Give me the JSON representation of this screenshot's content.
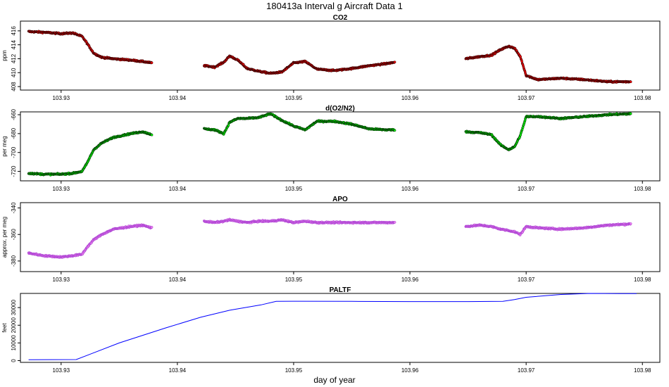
{
  "figure": {
    "title": "180413a   Interval g Aircraft Data 1",
    "xlabel": "day of year"
  },
  "chart_data": [
    {
      "type": "scatter",
      "title": "CO2",
      "ylabel": "ppm",
      "xlim": [
        103.9265,
        103.9815
      ],
      "ylim": [
        407.5,
        417.4
      ],
      "xticks": [
        103.93,
        103.94,
        103.95,
        103.96,
        103.97,
        103.98
      ],
      "xtick_labels": [
        "103.93",
        "103.94",
        "103.95",
        "103.96",
        "103.97",
        "103.98"
      ],
      "yticks": [
        408,
        410,
        412,
        414,
        416
      ],
      "ytick_labels": [
        "408",
        "410",
        "412",
        "414",
        "416"
      ],
      "point_fill": "#ff0000",
      "point_stroke": "#000000",
      "grid": false,
      "series": [
        {
          "x": [
            103.9272,
            103.9285,
            103.93,
            103.931,
            103.9318,
            103.9322,
            103.9328,
            103.9335,
            103.9345,
            103.936,
            103.937,
            103.9378
          ],
          "y": [
            415.9,
            415.8,
            415.6,
            415.7,
            415.2,
            414.3,
            412.8,
            412.2,
            412.0,
            411.8,
            411.6,
            411.4
          ]
        },
        {
          "x": [
            103.9423,
            103.9432,
            103.944,
            103.9445,
            103.9452,
            103.946,
            103.947,
            103.948,
            103.949,
            103.95,
            103.951,
            103.952,
            103.9535,
            103.955,
            103.9565,
            103.958,
            103.9587
          ],
          "y": [
            411.0,
            410.8,
            411.5,
            412.4,
            411.8,
            410.6,
            410.2,
            409.9,
            410.1,
            411.4,
            411.6,
            410.5,
            410.3,
            410.6,
            411.0,
            411.3,
            411.5
          ]
        },
        {
          "x": [
            103.9648,
            103.966,
            103.967,
            103.9678,
            103.9685,
            103.969,
            103.9695,
            103.97,
            103.971,
            103.973,
            103.975,
            103.977,
            103.979
          ],
          "y": [
            412.0,
            412.3,
            412.5,
            413.3,
            413.8,
            413.5,
            412.3,
            409.6,
            409.0,
            409.2,
            409.0,
            408.7,
            408.7
          ]
        }
      ]
    },
    {
      "type": "scatter",
      "title": "d(O2/N2)",
      "ylabel": "per meg",
      "xlim": [
        103.9265,
        103.9815
      ],
      "ylim": [
        -730,
        -657
      ],
      "xticks": [
        103.93,
        103.94,
        103.95,
        103.96,
        103.97,
        103.98
      ],
      "xtick_labels": [
        "103.93",
        "103.94",
        "103.95",
        "103.96",
        "103.97",
        "103.98"
      ],
      "yticks": [
        -720,
        -700,
        -680,
        -660
      ],
      "ytick_labels": [
        "-720",
        "-700",
        "-680",
        "-660"
      ],
      "point_fill": "#00ff00",
      "point_stroke": "#000000",
      "grid": false,
      "series": [
        {
          "x": [
            103.9272,
            103.9285,
            103.93,
            103.931,
            103.9318,
            103.9322,
            103.9328,
            103.9335,
            103.9345,
            103.936,
            103.937,
            103.9378
          ],
          "y": [
            -722,
            -723,
            -723,
            -722,
            -720,
            -712,
            -697,
            -690,
            -684,
            -680,
            -678,
            -681
          ]
        },
        {
          "x": [
            103.9423,
            103.9432,
            103.944,
            103.9445,
            103.9452,
            103.946,
            103.947,
            103.948,
            103.949,
            103.95,
            103.951,
            103.952,
            103.9535,
            103.955,
            103.9565,
            103.958,
            103.9587
          ],
          "y": [
            -675,
            -676,
            -680,
            -668,
            -664,
            -664,
            -663,
            -659,
            -666,
            -672,
            -676,
            -667,
            -667,
            -670,
            -675,
            -676,
            -676
          ]
        },
        {
          "x": [
            103.9648,
            103.966,
            103.967,
            103.9678,
            103.9685,
            103.969,
            103.9695,
            103.97,
            103.971,
            103.973,
            103.975,
            103.977,
            103.979
          ],
          "y": [
            -678,
            -679,
            -681,
            -692,
            -697,
            -694,
            -682,
            -662,
            -662,
            -664,
            -662,
            -660,
            -659
          ]
        }
      ]
    },
    {
      "type": "scatter",
      "title": "APO",
      "ylabel": "approx. per meg",
      "xlim": [
        103.9265,
        103.9815
      ],
      "ylim": [
        -388,
        -336
      ],
      "xticks": [
        103.93,
        103.94,
        103.95,
        103.96,
        103.97,
        103.98
      ],
      "xtick_labels": [
        "103.93",
        "103.94",
        "103.95",
        "103.96",
        "103.97",
        "103.98"
      ],
      "yticks": [
        -380,
        -360,
        -340
      ],
      "ytick_labels": [
        "-380",
        "-360",
        "-340"
      ],
      "point_fill": "#ee82ee",
      "point_stroke": "#9932cc",
      "grid": false,
      "series": [
        {
          "x": [
            103.9272,
            103.9285,
            103.93,
            103.931,
            103.9318,
            103.9322,
            103.9328,
            103.9335,
            103.9345,
            103.936,
            103.937,
            103.9378
          ],
          "y": [
            -374,
            -376,
            -377,
            -376,
            -375,
            -370,
            -364,
            -360,
            -356,
            -354,
            -353,
            -355
          ]
        },
        {
          "x": [
            103.9423,
            103.9432,
            103.944,
            103.9445,
            103.9452,
            103.946,
            103.947,
            103.948,
            103.949,
            103.95,
            103.951,
            103.952,
            103.9535,
            103.955,
            103.9565,
            103.958,
            103.9587
          ],
          "y": [
            -350,
            -351,
            -350,
            -349,
            -350,
            -351,
            -350,
            -350,
            -349,
            -351,
            -350,
            -351,
            -351,
            -351,
            -351,
            -351,
            -351
          ]
        },
        {
          "x": [
            103.9648,
            103.966,
            103.967,
            103.9678,
            103.9685,
            103.969,
            103.9695,
            103.97,
            103.971,
            103.973,
            103.975,
            103.977,
            103.979
          ],
          "y": [
            -354,
            -353,
            -354,
            -356,
            -357,
            -358,
            -360,
            -354,
            -355,
            -356,
            -355,
            -353,
            -352
          ]
        }
      ]
    },
    {
      "type": "line",
      "title": "PALTF",
      "ylabel": "feet",
      "xlim": [
        103.9265,
        103.9815
      ],
      "ylim": [
        -1000,
        38000
      ],
      "xticks": [
        103.93,
        103.94,
        103.95,
        103.96,
        103.97,
        103.98
      ],
      "xtick_labels": [
        "103.93",
        "103.94",
        "103.95",
        "103.96",
        "103.97",
        "103.98"
      ],
      "yticks": [
        0,
        10000,
        20000,
        30000
      ],
      "ytick_labels": [
        "0",
        "10000",
        "20000",
        "30000"
      ],
      "line_color": "#0000ff",
      "grid": false,
      "x": [
        103.9272,
        103.9313,
        103.935,
        103.939,
        103.942,
        103.9445,
        103.9472,
        103.9485,
        103.95,
        103.955,
        103.96,
        103.965,
        103.968,
        103.969,
        103.97,
        103.973,
        103.9755,
        103.978,
        103.9795
      ],
      "y": [
        500,
        600,
        10000,
        18500,
        24500,
        28500,
        31500,
        33500,
        33600,
        33500,
        33400,
        33400,
        33500,
        34500,
        35800,
        37400,
        38000,
        37900,
        37900
      ]
    }
  ]
}
